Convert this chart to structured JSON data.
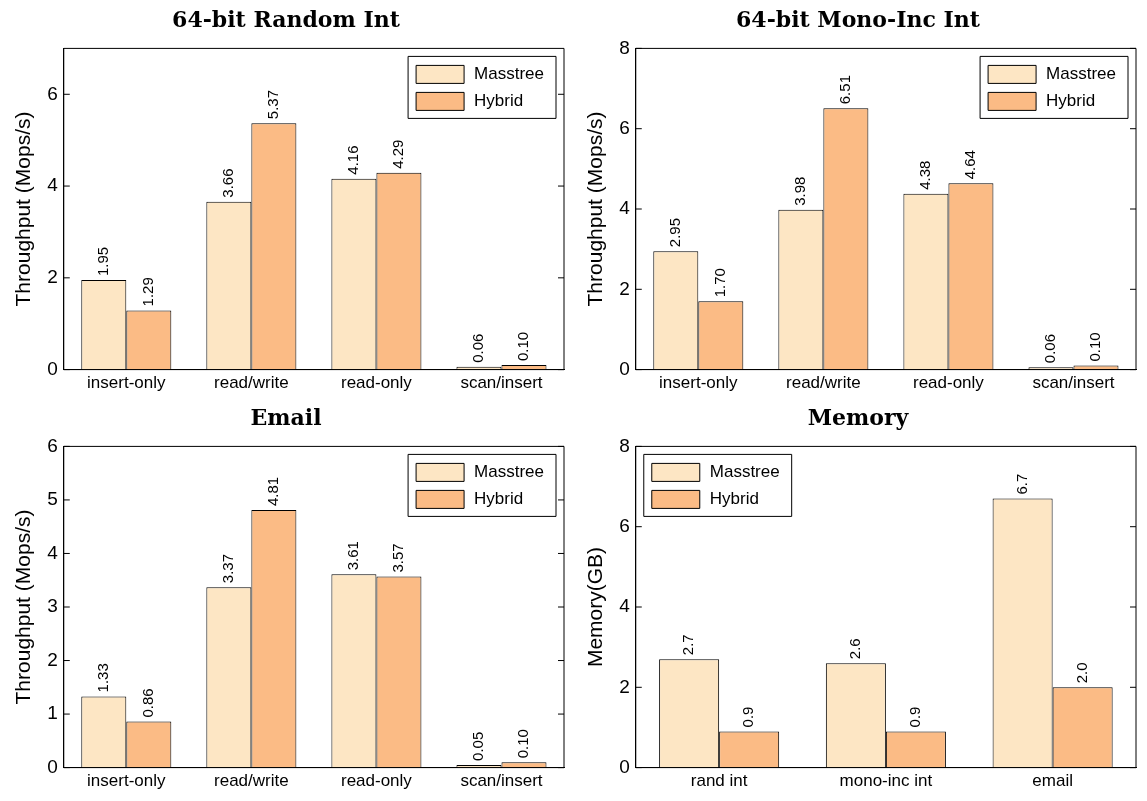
{
  "chart_data": [
    {
      "type": "bar",
      "title": "64-bit Random Int",
      "ylabel": "Throughput (Mops/s)",
      "categories": [
        "insert-only",
        "read/write",
        "read-only",
        "scan/insert"
      ],
      "ylim": [
        0,
        7
      ],
      "yticks": [
        0,
        2,
        4,
        6
      ],
      "grid": false,
      "legend": "top right",
      "series": [
        {
          "name": "Masstree",
          "color": "#fde6c4",
          "values": [
            1.95,
            3.66,
            4.16,
            0.06
          ],
          "value_labels": [
            "1.95",
            "3.66",
            "4.16",
            "0.06"
          ]
        },
        {
          "name": "Hybrid",
          "color": "#fbbb85",
          "values": [
            1.29,
            5.37,
            4.29,
            0.1
          ],
          "value_labels": [
            "1.29",
            "5.37",
            "4.29",
            "0.10"
          ]
        }
      ]
    },
    {
      "type": "bar",
      "title": "64-bit Mono-Inc Int",
      "ylabel": "Throughput (Mops/s)",
      "categories": [
        "insert-only",
        "read/write",
        "read-only",
        "scan/insert"
      ],
      "ylim": [
        0,
        8
      ],
      "yticks": [
        0,
        2,
        4,
        6,
        8
      ],
      "grid": false,
      "legend": "top right",
      "series": [
        {
          "name": "Masstree",
          "color": "#fde6c4",
          "values": [
            2.95,
            3.98,
            4.38,
            0.06
          ],
          "value_labels": [
            "2.95",
            "3.98",
            "4.38",
            "0.06"
          ]
        },
        {
          "name": "Hybrid",
          "color": "#fbbb85",
          "values": [
            1.7,
            6.51,
            4.64,
            0.1
          ],
          "value_labels": [
            "1.70",
            "6.51",
            "4.64",
            "0.10"
          ]
        }
      ]
    },
    {
      "type": "bar",
      "title": "Email",
      "ylabel": "Throughput (Mops/s)",
      "categories": [
        "insert-only",
        "read/write",
        "read-only",
        "scan/insert"
      ],
      "ylim": [
        0,
        6
      ],
      "yticks": [
        0,
        1,
        2,
        3,
        4,
        5,
        6
      ],
      "grid": false,
      "legend": "top right",
      "series": [
        {
          "name": "Masstree",
          "color": "#fde6c4",
          "values": [
            1.33,
            3.37,
            3.61,
            0.05
          ],
          "value_labels": [
            "1.33",
            "3.37",
            "3.61",
            "0.05"
          ]
        },
        {
          "name": "Hybrid",
          "color": "#fbbb85",
          "values": [
            0.86,
            4.81,
            3.57,
            0.1
          ],
          "value_labels": [
            "0.86",
            "4.81",
            "3.57",
            "0.10"
          ]
        }
      ]
    },
    {
      "type": "bar",
      "title": "Memory",
      "ylabel": "Memory(GB)",
      "categories": [
        "rand int",
        "mono-inc int",
        "email"
      ],
      "ylim": [
        0,
        8
      ],
      "yticks": [
        0,
        2,
        4,
        6,
        8
      ],
      "grid": false,
      "legend": "top left",
      "series": [
        {
          "name": "Masstree",
          "color": "#fde6c4",
          "values": [
            2.7,
            2.6,
            6.7
          ],
          "value_labels": [
            "2.7",
            "2.6",
            "6.7"
          ]
        },
        {
          "name": "Hybrid",
          "color": "#fbbb85",
          "values": [
            0.9,
            0.9,
            2.0
          ],
          "value_labels": [
            "0.9",
            "0.9",
            "2.0"
          ]
        }
      ]
    }
  ]
}
